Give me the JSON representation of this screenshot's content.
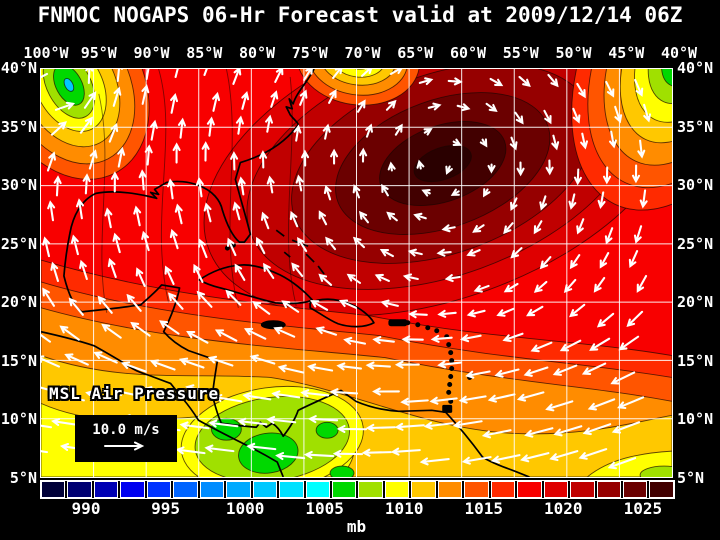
{
  "header": {
    "title": "FNMOC NOGAPS 06-Hr Forecast valid at 2009/12/14 06Z"
  },
  "map": {
    "lon_labels": [
      "100°W",
      "95°W",
      "90°W",
      "85°W",
      "80°W",
      "75°W",
      "70°W",
      "65°W",
      "60°W",
      "55°W",
      "50°W",
      "45°W",
      "40°W"
    ],
    "lat_labels_left": [
      "40°N",
      "35°N",
      "30°N",
      "25°N",
      "20°N",
      "15°N",
      "10°N",
      "5°N"
    ],
    "lat_labels_right": [
      "40°N",
      "35°N",
      "30°N",
      "25°N",
      "20°N",
      "15°N",
      "10°N",
      "5°N"
    ],
    "overlay": {
      "field_label": "MSL Air Pressure",
      "wind_scale_label": "10.0 m/s"
    }
  },
  "colorbar": {
    "units_label": "mb",
    "tick_labels": [
      "990",
      "995",
      "1000",
      "1005",
      "1010",
      "1015",
      "1020",
      "1025"
    ],
    "cell_colors": [
      "#000038",
      "#000072",
      "#0000b4",
      "#0000f0",
      "#0032ff",
      "#0064ff",
      "#008cff",
      "#00aaff",
      "#00c8ff",
      "#00e1ff",
      "#00ffff",
      "#00d800",
      "#a0e000",
      "#ffff00",
      "#ffc800",
      "#ff8c00",
      "#ff5500",
      "#ff2a00",
      "#f80000",
      "#df0000",
      "#c00000",
      "#960000",
      "#6b0000",
      "#420000"
    ]
  }
}
